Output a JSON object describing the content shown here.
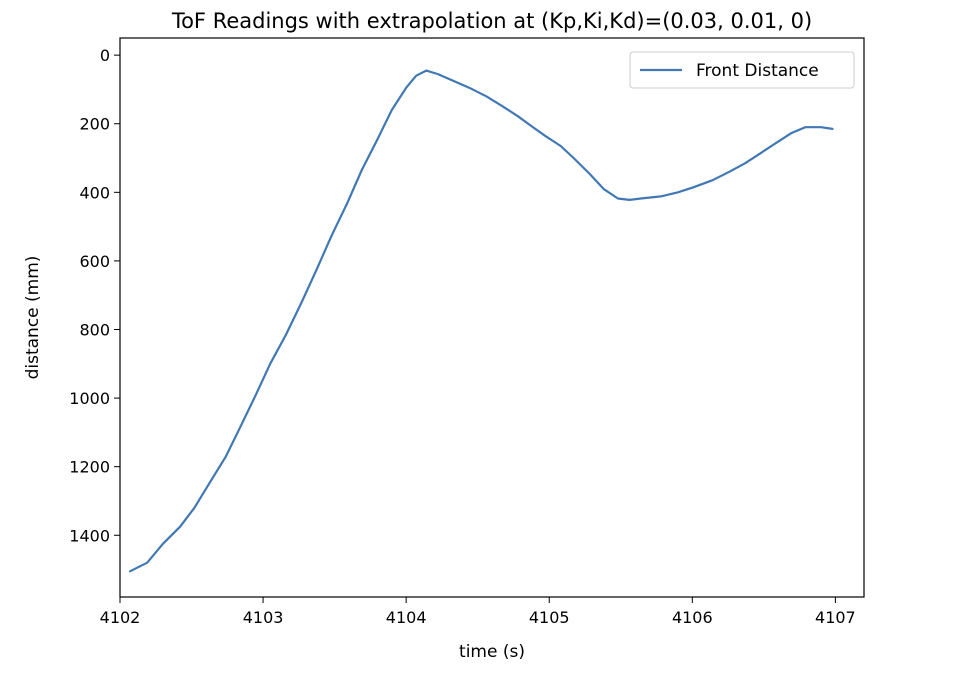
{
  "chart_data": {
    "type": "line",
    "title": "ToF Readings with extrapolation at (Kp,Ki,Kd)=(0.03, 0.01, 0)",
    "xlabel": "time (s)",
    "ylabel": "distance (mm)",
    "xlim": [
      4102.0,
      4107.2
    ],
    "ylim": [
      1580,
      -50
    ],
    "y_inverted": true,
    "grid": false,
    "legend_position": "top-right",
    "x_ticks": [
      "4102",
      "4103",
      "4104",
      "4105",
      "4106",
      "4107"
    ],
    "y_ticks": [
      "0",
      "200",
      "400",
      "600",
      "800",
      "1000",
      "1200",
      "1400"
    ],
    "series": [
      {
        "name": "Front Distance",
        "color": "#4178b4",
        "x": [
          4102.07,
          4102.19,
          4102.3,
          4102.42,
          4102.52,
          4102.63,
          4102.74,
          4102.84,
          4102.95,
          4103.05,
          4103.16,
          4103.27,
          4103.38,
          4103.48,
          4103.59,
          4103.69,
          4103.8,
          4103.9,
          4104.0,
          4104.07,
          4104.14,
          4104.22,
          4104.33,
          4104.44,
          4104.56,
          4104.67,
          4104.78,
          4104.87,
          4104.97,
          4105.08,
          4105.17,
          4105.28,
          4105.38,
          4105.48,
          4105.56,
          4105.64,
          4105.78,
          4105.9,
          4106.01,
          4106.14,
          4106.26,
          4106.37,
          4106.48,
          4106.59,
          4106.69,
          4106.79,
          4106.9,
          4106.98
        ],
        "y": [
          1505,
          1480,
          1425,
          1375,
          1320,
          1245,
          1170,
          1085,
          990,
          900,
          815,
          720,
          620,
          525,
          430,
          335,
          245,
          160,
          95,
          60,
          45,
          55,
          75,
          95,
          120,
          148,
          178,
          205,
          235,
          265,
          300,
          345,
          390,
          418,
          422,
          418,
          412,
          400,
          385,
          365,
          340,
          315,
          285,
          255,
          228,
          210,
          210,
          215
        ]
      }
    ]
  }
}
